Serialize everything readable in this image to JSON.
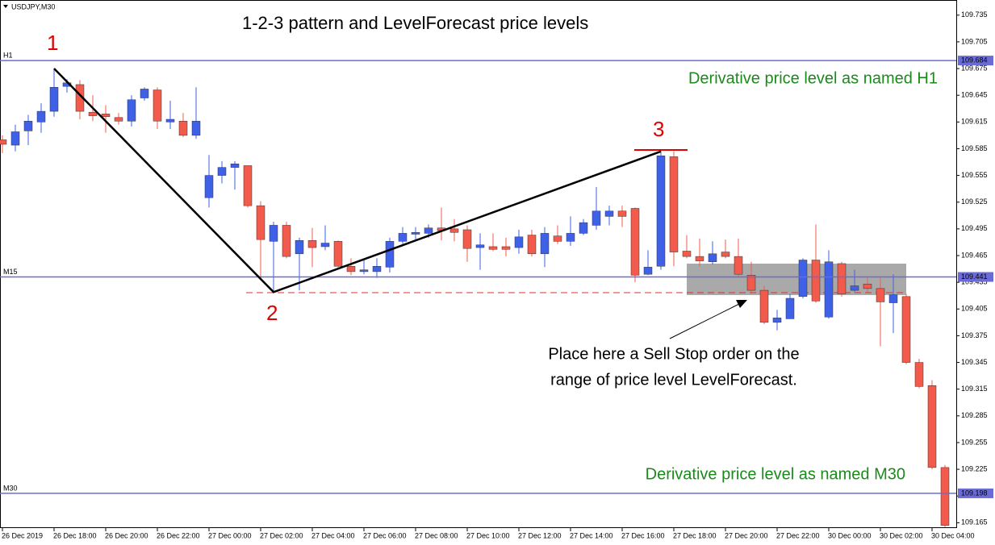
{
  "chart_data": {
    "type": "candlestick",
    "symbol": "USDJPY,M30",
    "title": "1-2-3 pattern and LevelForecast price levels",
    "up_color": "#3e61e8",
    "down_color": "#f25b4b",
    "ylim": [
      109.159,
      109.752
    ],
    "yticks": [
      109.735,
      109.705,
      109.675,
      109.645,
      109.615,
      109.585,
      109.555,
      109.525,
      109.495,
      109.465,
      109.435,
      109.405,
      109.375,
      109.345,
      109.315,
      109.285,
      109.255,
      109.225,
      109.195,
      109.165
    ],
    "xticks": [
      {
        "value": 0,
        "label": "26 Dec 2019"
      },
      {
        "value": 4,
        "label": "26 Dec 18:00"
      },
      {
        "value": 8,
        "label": "26 Dec 20:00"
      },
      {
        "value": 12,
        "label": "26 Dec 22:00"
      },
      {
        "value": 16,
        "label": "27 Dec 00:00"
      },
      {
        "value": 20,
        "label": "27 Dec 02:00"
      },
      {
        "value": 24,
        "label": "27 Dec 04:00"
      },
      {
        "value": 28,
        "label": "27 Dec 06:00"
      },
      {
        "value": 32,
        "label": "27 Dec 08:00"
      },
      {
        "value": 36,
        "label": "27 Dec 10:00"
      },
      {
        "value": 40,
        "label": "27 Dec 12:00"
      },
      {
        "value": 44,
        "label": "27 Dec 14:00"
      },
      {
        "value": 48,
        "label": "27 Dec 16:00"
      },
      {
        "value": 52,
        "label": "27 Dec 18:00"
      },
      {
        "value": 56,
        "label": "27 Dec 20:00"
      },
      {
        "value": 60,
        "label": "27 Dec 22:00"
      },
      {
        "value": 64,
        "label": "30 Dec 00:00"
      },
      {
        "value": 68,
        "label": "30 Dec 02:00"
      },
      {
        "value": 72,
        "label": "30 Dec 04:00"
      }
    ],
    "ohlc": [
      [
        109.595,
        109.6,
        109.58,
        109.59
      ],
      [
        109.589,
        109.612,
        109.582,
        109.604
      ],
      [
        109.605,
        109.623,
        109.589,
        109.616
      ],
      [
        109.615,
        109.636,
        109.603,
        109.627
      ],
      [
        109.627,
        109.675,
        109.621,
        109.654
      ],
      [
        109.655,
        109.663,
        109.648,
        109.659
      ],
      [
        109.657,
        109.662,
        109.618,
        109.627
      ],
      [
        109.626,
        109.645,
        109.616,
        109.622
      ],
      [
        109.624,
        109.634,
        109.603,
        109.621
      ],
      [
        109.62,
        109.625,
        109.612,
        109.616
      ],
      [
        109.616,
        109.645,
        109.61,
        109.64
      ],
      [
        109.642,
        109.654,
        109.639,
        109.652
      ],
      [
        109.651,
        109.654,
        109.607,
        109.616
      ],
      [
        109.615,
        109.639,
        109.607,
        109.618
      ],
      [
        109.616,
        109.625,
        109.598,
        109.6
      ],
      [
        109.6,
        109.654,
        109.596,
        109.616
      ],
      [
        109.53,
        109.578,
        109.519,
        109.555
      ],
      [
        109.555,
        109.571,
        109.546,
        109.564
      ],
      [
        109.564,
        109.571,
        109.539,
        109.568
      ],
      [
        109.566,
        109.566,
        109.519,
        109.521
      ],
      [
        109.521,
        109.526,
        109.44,
        109.483
      ],
      [
        109.481,
        109.503,
        109.424,
        109.499
      ],
      [
        109.499,
        109.503,
        109.462,
        109.464
      ],
      [
        109.467,
        109.485,
        109.426,
        109.482
      ],
      [
        109.482,
        109.496,
        109.452,
        109.474
      ],
      [
        109.475,
        109.499,
        109.471,
        109.479
      ],
      [
        109.481,
        109.482,
        109.452,
        109.453
      ],
      [
        109.453,
        109.462,
        109.443,
        109.447
      ],
      [
        109.447,
        109.461,
        109.444,
        109.449
      ],
      [
        109.447,
        109.462,
        109.44,
        109.453
      ],
      [
        109.452,
        109.485,
        109.446,
        109.481
      ],
      [
        109.481,
        109.497,
        109.478,
        109.49
      ],
      [
        109.489,
        109.497,
        109.482,
        109.491
      ],
      [
        109.49,
        109.5,
        109.485,
        109.496
      ],
      [
        109.496,
        109.519,
        109.482,
        109.493
      ],
      [
        109.495,
        109.506,
        109.481,
        109.491
      ],
      [
        109.494,
        109.499,
        109.458,
        109.473
      ],
      [
        109.474,
        109.49,
        109.449,
        109.477
      ],
      [
        109.475,
        109.49,
        109.47,
        109.472
      ],
      [
        109.475,
        109.485,
        109.464,
        109.472
      ],
      [
        109.474,
        109.494,
        109.467,
        109.486
      ],
      [
        109.488,
        109.494,
        109.464,
        109.467
      ],
      [
        109.467,
        109.497,
        109.452,
        109.49
      ],
      [
        109.487,
        109.499,
        109.478,
        109.481
      ],
      [
        109.481,
        109.509,
        109.476,
        109.49
      ],
      [
        109.49,
        109.506,
        109.488,
        109.502
      ],
      [
        109.499,
        109.542,
        109.494,
        109.515
      ],
      [
        109.509,
        109.521,
        109.499,
        109.515
      ],
      [
        109.515,
        109.521,
        109.497,
        109.509
      ],
      [
        109.518,
        109.519,
        109.435,
        109.443
      ],
      [
        109.444,
        109.471,
        109.443,
        109.452
      ],
      [
        109.453,
        109.582,
        109.449,
        109.577
      ],
      [
        109.576,
        109.582,
        109.453,
        109.469
      ],
      [
        109.47,
        109.488,
        109.462,
        109.464
      ],
      [
        109.464,
        109.484,
        109.453,
        109.459
      ],
      [
        109.458,
        109.481,
        109.455,
        109.467
      ],
      [
        109.469,
        109.483,
        109.462,
        109.464
      ],
      [
        109.464,
        109.484,
        109.44,
        109.444
      ],
      [
        109.443,
        109.458,
        109.422,
        109.426
      ],
      [
        109.426,
        109.431,
        109.388,
        109.39
      ],
      [
        109.39,
        109.404,
        109.381,
        109.395
      ],
      [
        109.394,
        109.422,
        109.394,
        109.417
      ],
      [
        109.419,
        109.462,
        109.417,
        109.46
      ],
      [
        109.46,
        109.5,
        109.412,
        109.414
      ],
      [
        109.396,
        109.471,
        109.394,
        109.458
      ],
      [
        109.456,
        109.458,
        109.419,
        109.422
      ],
      [
        109.426,
        109.449,
        109.424,
        109.431
      ],
      [
        109.433,
        109.44,
        109.424,
        109.428
      ],
      [
        109.428,
        109.44,
        109.363,
        109.413
      ],
      [
        109.412,
        109.444,
        109.378,
        109.421
      ],
      [
        109.419,
        109.422,
        109.343,
        109.345
      ],
      [
        109.345,
        109.349,
        109.316,
        109.318
      ],
      [
        109.319,
        109.325,
        109.225,
        109.227
      ],
      [
        109.227,
        109.23,
        109.16,
        109.162
      ]
    ],
    "levels": [
      {
        "name": "H1",
        "value": 109.684,
        "color": "#6b6bd6"
      },
      {
        "name": "M15",
        "value": 109.441,
        "color": "#6b6bd6"
      },
      {
        "name": "M30",
        "value": 109.198,
        "color": "#6b6bd6"
      }
    ],
    "annotations": {
      "point_1": "1",
      "point_2": "2",
      "point_3": "3",
      "h1_note": "Derivative price level as named H1",
      "m30_note": "Derivative price level as named M30",
      "order_note": [
        "Place here a Sell Stop order on the",
        "range of price level LevelForecast."
      ]
    }
  }
}
